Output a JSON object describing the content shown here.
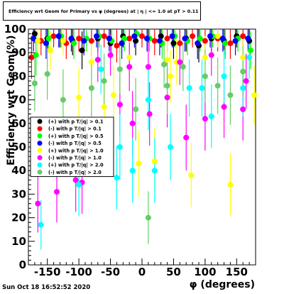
{
  "chart_data": {
    "type": "scatter",
    "title": "Efficiency wrt Geom for Primary vs φ (degrees) at | η | <= 1.0 at pT > 0.11",
    "xlabel": "φ (degrees)",
    "ylabel": "Efficiency wrt Geom(%)",
    "xlim": [
      -180,
      180
    ],
    "ylim": [
      0,
      100
    ],
    "x_ticks": [
      -150,
      -100,
      -50,
      0,
      50,
      100,
      150
    ],
    "y_ticks": [
      0,
      10,
      20,
      30,
      40,
      50,
      60,
      70,
      80,
      90,
      100
    ],
    "legend_position": "middle-left",
    "series": [
      {
        "name": "(+) with p T/|q| > 0.1",
        "color": "#000000",
        "points": [
          [
            -170,
            98
          ],
          [
            -150,
            96
          ],
          [
            -130,
            97
          ],
          [
            -110,
            95
          ],
          [
            -95,
            91
          ],
          [
            -70,
            96
          ],
          [
            -50,
            94
          ],
          [
            -30,
            97
          ],
          [
            -10,
            95
          ],
          [
            10,
            96
          ],
          [
            30,
            97
          ],
          [
            50,
            94
          ],
          [
            70,
            96
          ],
          [
            90,
            93
          ],
          [
            110,
            96
          ],
          [
            130,
            95
          ],
          [
            150,
            97
          ],
          [
            170,
            95
          ]
        ]
      },
      {
        "name": "(-) with p T/|q| > 0.1",
        "color": "#ff0000",
        "points": [
          [
            -175,
            88
          ],
          [
            -160,
            95
          ],
          [
            -140,
            97
          ],
          [
            -120,
            94
          ],
          [
            -100,
            96
          ],
          [
            -80,
            95
          ],
          [
            -60,
            97
          ],
          [
            -40,
            93
          ],
          [
            -20,
            96
          ],
          [
            0,
            97
          ],
          [
            20,
            95
          ],
          [
            40,
            96
          ],
          [
            60,
            94
          ],
          [
            80,
            97
          ],
          [
            100,
            95
          ],
          [
            120,
            96
          ],
          [
            140,
            94
          ],
          [
            160,
            97
          ]
        ]
      },
      {
        "name": "(+) with p T/|q| > 0.5",
        "color": "#00ff00",
        "points": [
          [
            -168,
            89
          ],
          [
            -148,
            96
          ],
          [
            -128,
            97
          ],
          [
            -108,
            94
          ],
          [
            -88,
            96
          ],
          [
            -68,
            97
          ],
          [
            -48,
            95
          ],
          [
            -28,
            96
          ],
          [
            -8,
            98
          ],
          [
            12,
            96
          ],
          [
            32,
            94
          ],
          [
            52,
            97
          ],
          [
            72,
            95
          ],
          [
            92,
            96
          ],
          [
            112,
            97
          ],
          [
            132,
            94
          ],
          [
            152,
            96
          ],
          [
            172,
            91
          ]
        ]
      },
      {
        "name": "(-) with p T/|q| > 0.5",
        "color": "#0000ff",
        "points": [
          [
            -172,
            96
          ],
          [
            -152,
            94
          ],
          [
            -132,
            97
          ],
          [
            -112,
            96
          ],
          [
            -92,
            95
          ],
          [
            -72,
            97
          ],
          [
            -52,
            96
          ],
          [
            -32,
            94
          ],
          [
            -12,
            97
          ],
          [
            8,
            96
          ],
          [
            28,
            95
          ],
          [
            48,
            97
          ],
          [
            68,
            96
          ],
          [
            88,
            94
          ],
          [
            108,
            97
          ],
          [
            128,
            96
          ],
          [
            148,
            95
          ],
          [
            168,
            96
          ]
        ]
      },
      {
        "name": "(+) with p T/|q| > 1.0",
        "color": "#ffff00",
        "points": [
          [
            -165,
            95
          ],
          [
            -145,
            91
          ],
          [
            -125,
            95
          ],
          [
            -100,
            71
          ],
          [
            -80,
            86
          ],
          [
            -60,
            67
          ],
          [
            -45,
            72
          ],
          [
            -20,
            88
          ],
          [
            -5,
            43
          ],
          [
            20,
            44
          ],
          [
            40,
            87
          ],
          [
            45,
            80
          ],
          [
            55,
            86
          ],
          [
            78,
            38
          ],
          [
            100,
            88
          ],
          [
            120,
            97
          ],
          [
            140,
            34
          ],
          [
            160,
            88
          ],
          [
            178,
            72
          ]
        ]
      },
      {
        "name": "(-) with p T/|q| > 1.0",
        "color": "#ff00ff",
        "points": [
          [
            -165,
            26
          ],
          [
            -135,
            31
          ],
          [
            -105,
            36
          ],
          [
            -95,
            35
          ],
          [
            -70,
            87
          ],
          [
            -50,
            89
          ],
          [
            -35,
            68
          ],
          [
            -20,
            84
          ],
          [
            -15,
            60
          ],
          [
            10,
            84
          ],
          [
            12,
            64
          ],
          [
            40,
            71
          ],
          [
            60,
            86
          ],
          [
            70,
            54
          ],
          [
            100,
            62
          ],
          [
            110,
            89
          ],
          [
            130,
            67
          ],
          [
            160,
            66
          ],
          [
            165,
            78
          ]
        ]
      },
      {
        "name": "(+) with p T/|q| > 2.0",
        "color": "#00ffff",
        "points": [
          [
            -160,
            17
          ],
          [
            -100,
            34
          ],
          [
            -65,
            83
          ],
          [
            -40,
            37
          ],
          [
            -35,
            50
          ],
          [
            -15,
            40
          ],
          [
            10,
            70
          ],
          [
            20,
            40
          ],
          [
            45,
            50
          ],
          [
            75,
            75
          ],
          [
            95,
            75
          ],
          [
            110,
            63
          ],
          [
            130,
            80
          ],
          [
            160,
            75
          ],
          [
            170,
            88
          ]
        ]
      },
      {
        "name": "(-) with p T/|q| > 2.0",
        "color": "#66cc66",
        "points": [
          [
            -170,
            77
          ],
          [
            -150,
            81
          ],
          [
            -125,
            70
          ],
          [
            -80,
            75
          ],
          [
            -60,
            78
          ],
          [
            -35,
            83
          ],
          [
            -10,
            66
          ],
          [
            10,
            20
          ],
          [
            35,
            85
          ],
          [
            40,
            76
          ],
          [
            65,
            84
          ],
          [
            100,
            80
          ],
          [
            120,
            76
          ],
          [
            140,
            72
          ],
          [
            160,
            82
          ]
        ]
      }
    ]
  },
  "title_text": "Efficiency wrt Geom for Primary vs φ (degrees) at | η | <= 1.0 at pT > 0.11",
  "timestamp": "Sun Oct 18 16:52:52 2020"
}
